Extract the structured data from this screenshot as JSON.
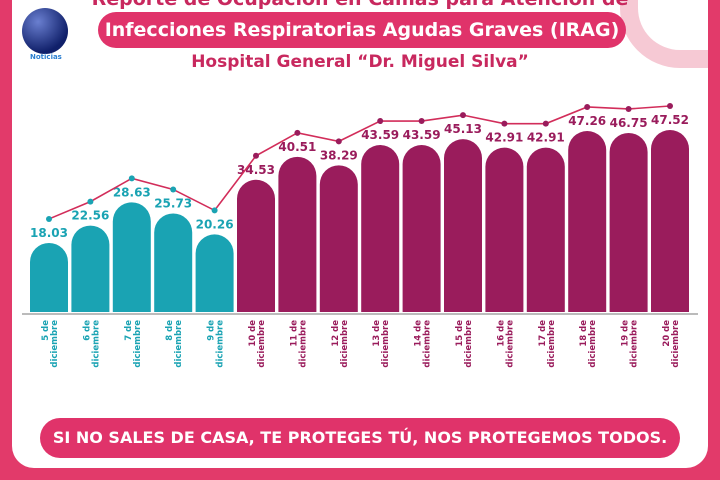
{
  "header": {
    "title_top": "Reporte de Ocupación en Camas para Atención de",
    "title_main": "Infecciones Respiratorias Agudas Graves (IRAG)",
    "subtitle": "Hospital General “Dr. Miguel Silva”",
    "logo_text": "Noticias"
  },
  "chart_data": {
    "type": "bar",
    "categories": [
      "5 de diciembre",
      "6 de diciembre",
      "7 de diciembre",
      "8 de diciembre",
      "9 de diciembre",
      "10 de diciembre",
      "11 de diciembre",
      "12 de diciembre",
      "13 de diciembre",
      "14 de diciembre",
      "15 de diciembre",
      "16 de diciembre",
      "17 de diciembre",
      "18 de diciembre",
      "19 de diciembre",
      "20 de diciembre"
    ],
    "values": [
      18.03,
      22.56,
      28.63,
      25.73,
      20.26,
      34.53,
      40.51,
      38.29,
      43.59,
      43.59,
      45.13,
      42.91,
      42.91,
      47.26,
      46.75,
      47.52
    ],
    "overlay": "line",
    "colors": {
      "first_group": "#1aa3b3",
      "second_group": "#9a1c5c",
      "line": "#d22d5a"
    },
    "ylim": [
      0,
      50
    ],
    "grid": false
  },
  "footer": {
    "slogan": "SI NO SALES DE CASA, TE PROTEGES TÚ, NOS PROTEGEMOS TODOS."
  }
}
